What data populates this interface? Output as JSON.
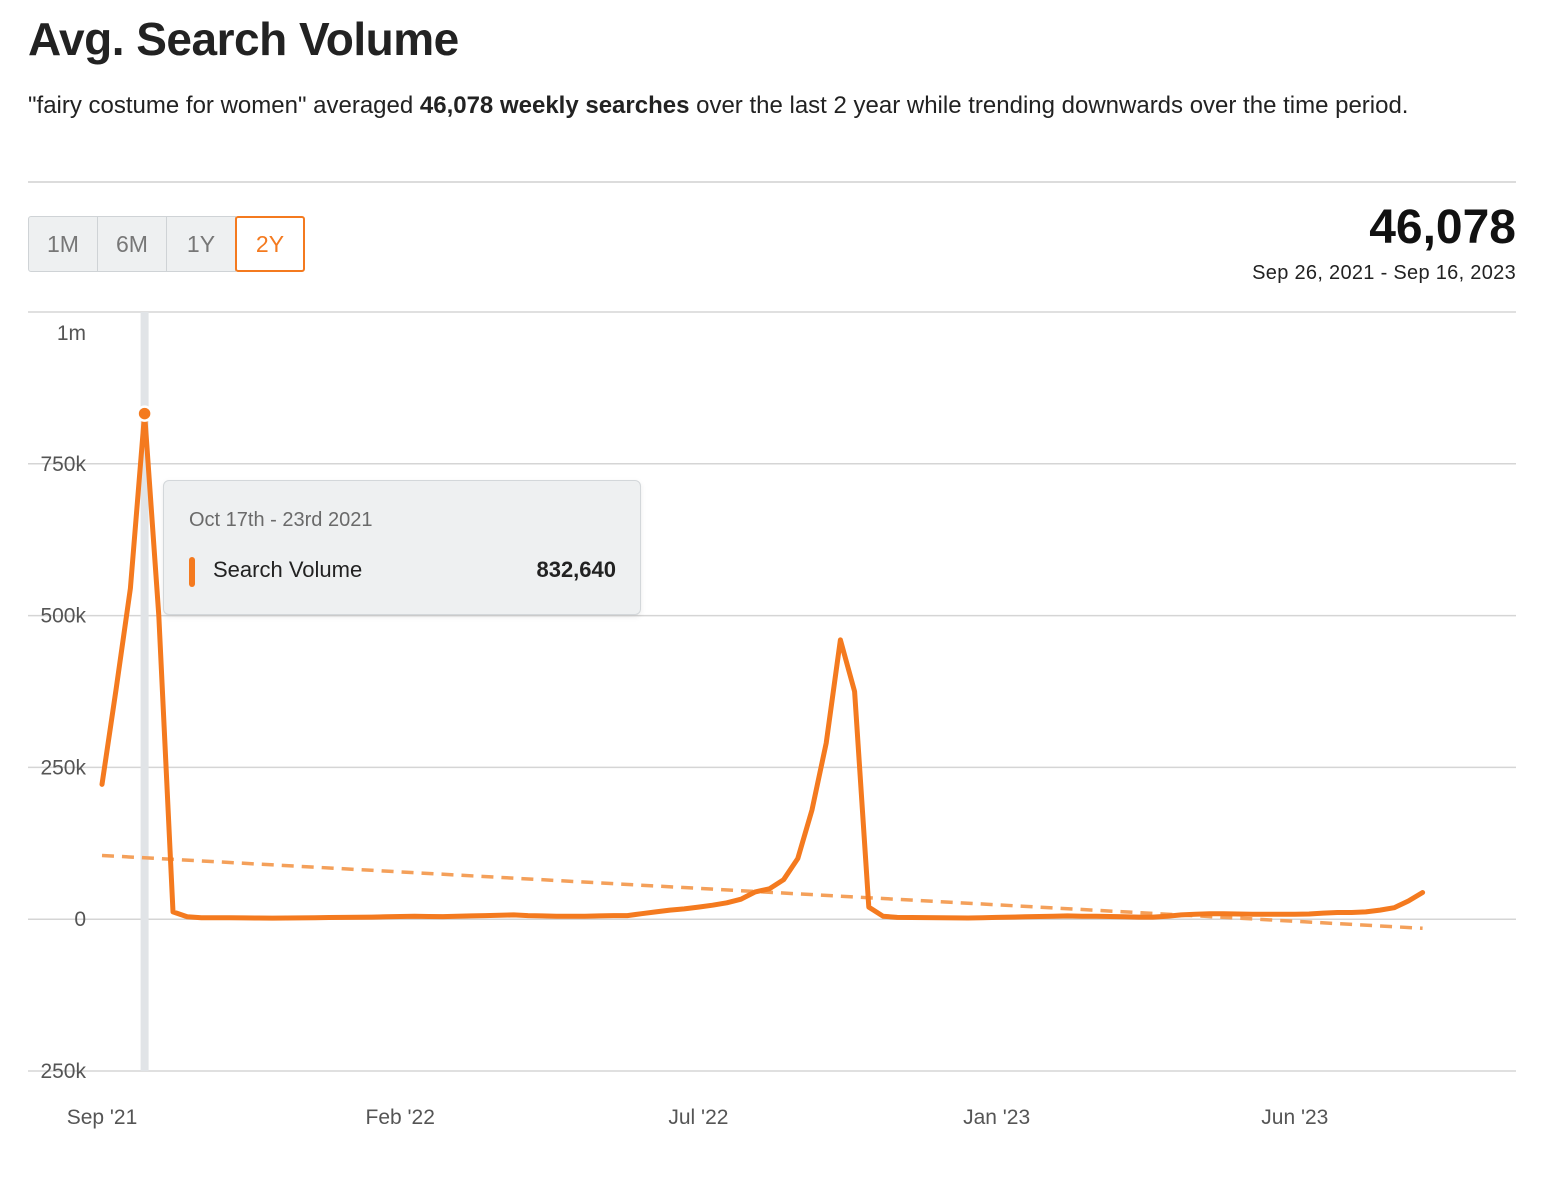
{
  "header": {
    "title": "Avg. Search Volume",
    "summary_prefix": "\"fairy costume for women\" averaged ",
    "summary_bold": "46,078 weekly searches",
    "summary_suffix": " over the last 2 year while trending downwards over the time period."
  },
  "range_tabs": [
    {
      "label": "1M",
      "active": false
    },
    {
      "label": "6M",
      "active": false
    },
    {
      "label": "1Y",
      "active": false
    },
    {
      "label": "2Y",
      "active": true
    }
  ],
  "stat": {
    "value": "46,078",
    "date_range": "Sep 26, 2021 - Sep 16, 2023"
  },
  "tooltip": {
    "date": "Oct 17th - 23rd 2021",
    "series": "Search Volume",
    "value": "832,640"
  },
  "colors": {
    "line": "#f47a1f",
    "trend": "#f4a05a",
    "grid": "#d5d5d5",
    "highlight": "#e1e4e7"
  },
  "chart_data": {
    "type": "line",
    "title": "",
    "xlabel": "",
    "ylabel": "",
    "ylim": [
      -250000,
      1000000
    ],
    "y_ticks": [
      1000000,
      750000,
      500000,
      250000,
      0,
      -250000
    ],
    "y_tick_labels": [
      "1m",
      "750k",
      "500k",
      "250k",
      "0",
      "250k"
    ],
    "x_ticks": [
      {
        "label": "Sep '21",
        "week": 0
      },
      {
        "label": "Feb '22",
        "week": 21
      },
      {
        "label": "Jul '22",
        "week": 42
      },
      {
        "label": "Jan '23",
        "week": 63
      },
      {
        "label": "Jun '23",
        "week": 84
      }
    ],
    "highlight_week": 3,
    "series": [
      {
        "name": "Search Volume",
        "values": [
          222000,
          380000,
          545000,
          832640,
          500000,
          12000,
          4000,
          2500,
          2500,
          2500,
          2200,
          2000,
          1800,
          2000,
          2200,
          2500,
          2800,
          3000,
          3200,
          3500,
          4000,
          4500,
          4800,
          4500,
          4200,
          4800,
          5500,
          6000,
          6500,
          7000,
          6000,
          5500,
          5000,
          5000,
          5000,
          5500,
          6000,
          6000,
          9000,
          12000,
          15000,
          17000,
          20000,
          23000,
          27000,
          33000,
          45000,
          50000,
          65000,
          100000,
          180000,
          290000,
          460000,
          375000,
          20000,
          5000,
          3000,
          2800,
          2600,
          2400,
          2200,
          2000,
          2500,
          3000,
          3500,
          4000,
          4500,
          5000,
          5500,
          5000,
          5000,
          4500,
          4000,
          3500,
          3500,
          5000,
          7000,
          8000,
          9000,
          9000,
          8500,
          8000,
          8000,
          8000,
          8000,
          8500,
          10000,
          11000,
          11000,
          12000,
          15000,
          19000,
          30000,
          44000
        ]
      }
    ],
    "trend": {
      "start": 105000,
      "end": -15000
    }
  }
}
